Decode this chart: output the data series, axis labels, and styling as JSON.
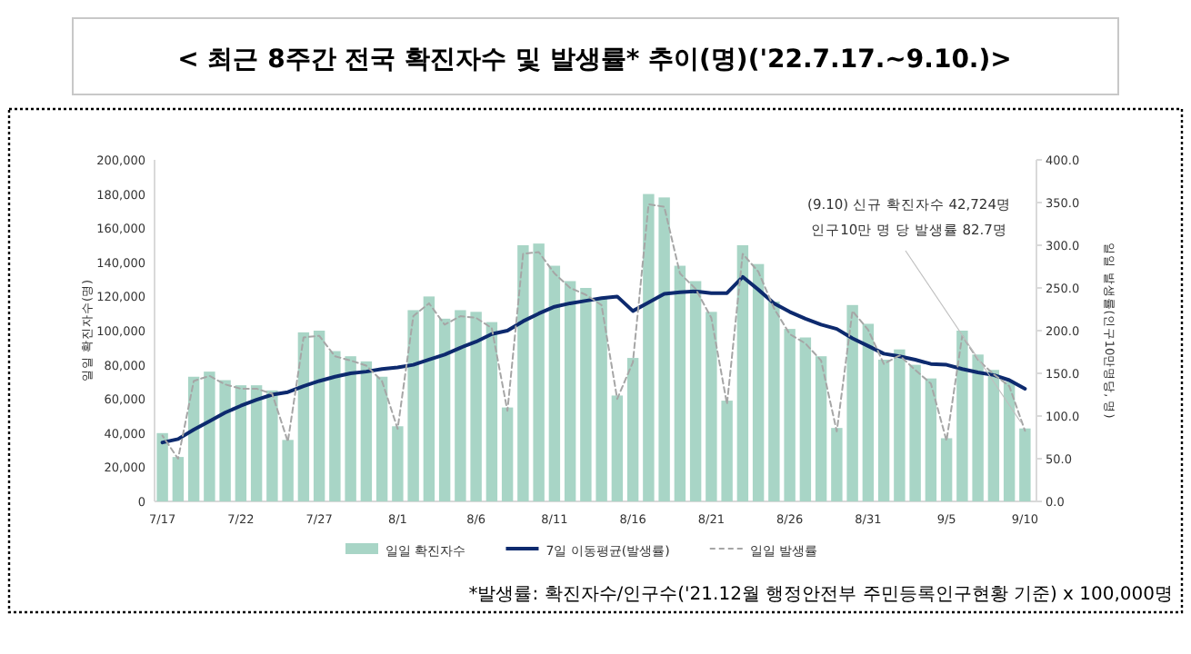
{
  "chart_data": {
    "type": "bar",
    "title": "< 최근 8주간 전국 확진자수 및 발생률* 추이(명)('22.7.17.~9.10.)>",
    "ylabel": "일일 확진자수(명)",
    "y2label": "일일 발생률(인구10만명당, 명)",
    "categories": [
      "7/17",
      null,
      null,
      null,
      null,
      "7/22",
      null,
      null,
      null,
      null,
      "7/27",
      null,
      null,
      null,
      null,
      "8/1",
      null,
      null,
      null,
      null,
      "8/6",
      null,
      null,
      null,
      null,
      "8/11",
      null,
      null,
      null,
      null,
      "8/16",
      null,
      null,
      null,
      null,
      "8/21",
      null,
      null,
      null,
      null,
      "8/26",
      null,
      null,
      null,
      null,
      "8/31",
      null,
      null,
      null,
      null,
      "9/5",
      null,
      null,
      null,
      null,
      "9/10"
    ],
    "series": [
      {
        "name": "일일 확진자수",
        "color": "#a8d5c6",
        "values": [
          40000,
          26000,
          73000,
          76000,
          71000,
          68000,
          68000,
          65000,
          36000,
          99000,
          100000,
          88000,
          85000,
          82000,
          73000,
          44000,
          112000,
          120000,
          107000,
          112000,
          111000,
          105000,
          55000,
          150000,
          151000,
          138000,
          129000,
          125000,
          119000,
          62000,
          84000,
          180000,
          178000,
          138000,
          129000,
          111000,
          59000,
          150000,
          139000,
          117000,
          101000,
          96000,
          85000,
          43000,
          115000,
          104000,
          83000,
          89000,
          80000,
          72000,
          37000,
          100000,
          86000,
          77000,
          70000,
          42724
        ]
      },
      {
        "name": "7일 이동평균(발생률)",
        "type": "line",
        "axis": "y2",
        "color": "#0d2a6e",
        "values": [
          69,
          73,
          84,
          94,
          104,
          112,
          119,
          125,
          128,
          135,
          141,
          146,
          150,
          152,
          155,
          157,
          160,
          166,
          172,
          180,
          187,
          196,
          200,
          211,
          220,
          228,
          232,
          235,
          238,
          240,
          223,
          233,
          243,
          245,
          246,
          244,
          244,
          263,
          248,
          232,
          222,
          214,
          207,
          202,
          191,
          182,
          173,
          170,
          166,
          161,
          160,
          155,
          151,
          148,
          142,
          132
        ]
      },
      {
        "name": "일일 발생률",
        "type": "line",
        "axis": "y2",
        "line_style": "dashed",
        "color": "#a6a6a6",
        "values": [
          77,
          50,
          141,
          147,
          137,
          132,
          132,
          126,
          70,
          192,
          194,
          170,
          165,
          159,
          141,
          85,
          217,
          232,
          207,
          217,
          215,
          203,
          106,
          290,
          292,
          267,
          250,
          242,
          230,
          120,
          163,
          348,
          345,
          267,
          249,
          215,
          114,
          290,
          269,
          226,
          196,
          185,
          165,
          82,
          223,
          201,
          161,
          171,
          154,
          138,
          71,
          194,
          166,
          149,
          135,
          82.7
        ]
      }
    ],
    "ylim": [
      0,
      200000
    ],
    "yticks": [
      {
        "value": 0,
        "label": "0"
      },
      {
        "value": 20000,
        "label": "20,000"
      },
      {
        "value": 40000,
        "label": "40,000"
      },
      {
        "value": 60000,
        "label": "60,000"
      },
      {
        "value": 80000,
        "label": "80,000"
      },
      {
        "value": 100000,
        "label": "100,000"
      },
      {
        "value": 120000,
        "label": "120,000"
      },
      {
        "value": 140000,
        "label": "140,000"
      },
      {
        "value": 160000,
        "label": "160,000"
      },
      {
        "value": 180000,
        "label": "180,000"
      },
      {
        "value": 200000,
        "label": "200,000"
      }
    ],
    "y2lim": [
      0,
      400
    ],
    "y2ticks": [
      {
        "value": 0,
        "label": "0.0"
      },
      {
        "value": 50,
        "label": "50.0"
      },
      {
        "value": 100,
        "label": "100.0"
      },
      {
        "value": 150,
        "label": "150.0"
      },
      {
        "value": 200,
        "label": "200.0"
      },
      {
        "value": 250,
        "label": "250.0"
      },
      {
        "value": 300,
        "label": "300.0"
      },
      {
        "value": 350,
        "label": "350.0"
      },
      {
        "value": 400,
        "label": "400.0"
      }
    ],
    "legend": "bottom",
    "annotations": [
      "(9.10) 신규 확진자수 42,724명",
      {
        "text": "인구10만 명 당 발생률 82.7명",
        "x": "9/10",
        "y": 42724
      },
      "*발생률: 확진자수/인구수('21.12월 행정안전부 주민등록인구현황 기준) x 100,000명"
    ]
  }
}
